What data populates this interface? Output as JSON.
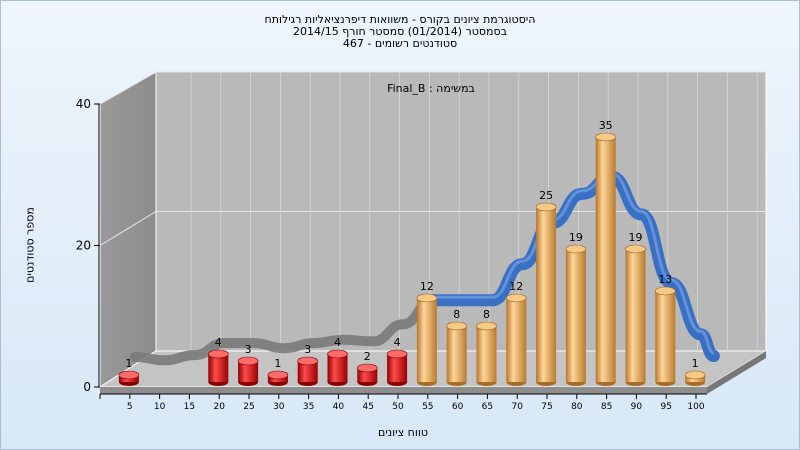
{
  "title_lines": [
    "היסטוגרמת ציונים בקורס - משוואות דיפרנציאליות רגילותח",
    "בסמסטר  (01/2014)  סמסטר חורף 2014/15",
    "467 - סטודנטים רשומים"
  ],
  "chart_data": {
    "type": "bar",
    "subtitle": "Final_B : במשימה",
    "xlabel": "טווח ציונים",
    "ylabel": "מספר סטודנטים",
    "ylim": [
      0,
      40
    ],
    "yticks": [
      "0",
      "20",
      "40"
    ],
    "grid": true,
    "categories": [
      "5",
      "10",
      "15",
      "20",
      "25",
      "30",
      "35",
      "40",
      "45",
      "50",
      "55",
      "60",
      "65",
      "70",
      "75",
      "80",
      "85",
      "90",
      "95",
      "100"
    ],
    "values": [
      1,
      0,
      0,
      4,
      3,
      1,
      3,
      4,
      2,
      4,
      12,
      8,
      8,
      12,
      25,
      19,
      35,
      19,
      13,
      1
    ],
    "value_labels": [
      "1",
      "",
      "",
      "4",
      "3",
      "1",
      "3",
      "4",
      "2",
      "4",
      "12",
      "8",
      "8",
      "12",
      "25",
      "19",
      "35",
      "19",
      "13",
      "1"
    ],
    "fail_color": "#e01010",
    "pass_color": "#e9a643",
    "curve_color": "#3a70c4",
    "curve_fail_color": "#7a7a7a"
  }
}
